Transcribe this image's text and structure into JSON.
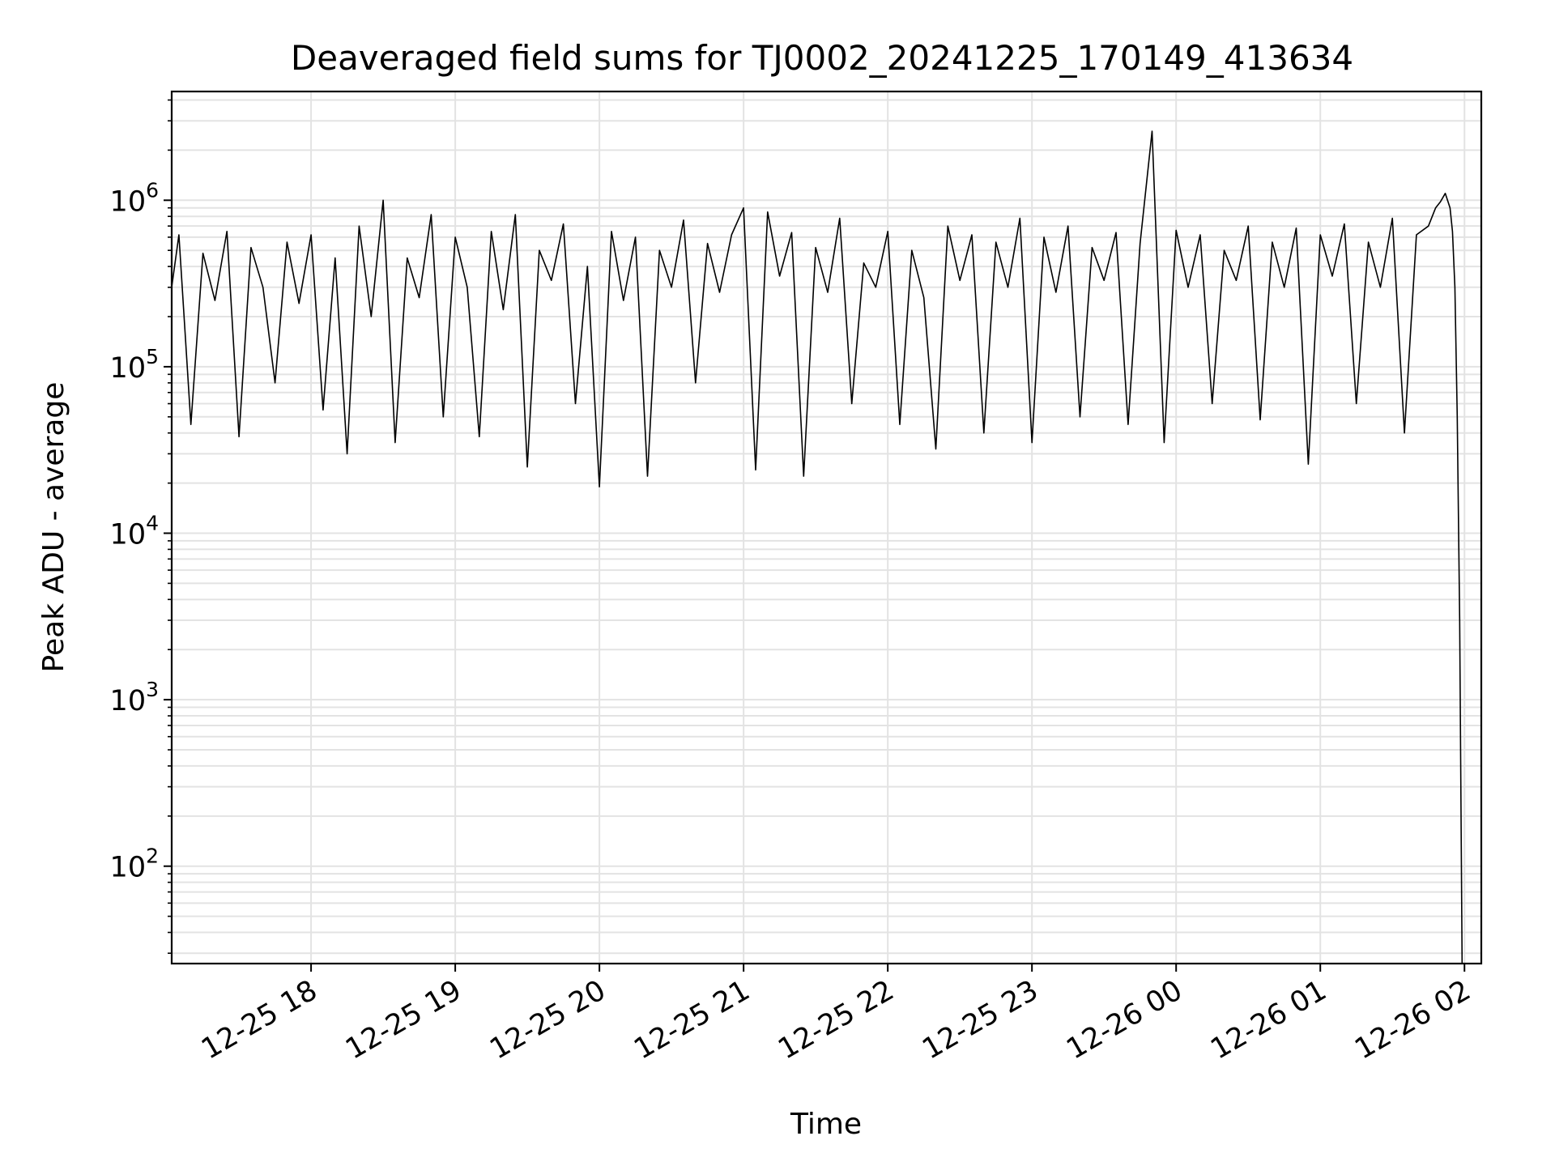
{
  "chart_data": {
    "type": "line",
    "title": "Deaveraged field sums for TJ0002_20241225_170149_413634",
    "xlabel": "Time",
    "ylabel": "Peak ADU - average",
    "yscale": "log",
    "grid": true,
    "grid_minor": true,
    "line_color": "#000000",
    "grid_color": "#e3e3e3",
    "xlim": [
      "2024-12-25 17:02",
      "2024-12-26 02:07"
    ],
    "ylim": [
      26,
      4500000
    ],
    "x_ticks": [
      {
        "value": "2024-12-25 18:00",
        "label": "12-25 18"
      },
      {
        "value": "2024-12-25 19:00",
        "label": "12-25 19"
      },
      {
        "value": "2024-12-25 20:00",
        "label": "12-25 20"
      },
      {
        "value": "2024-12-25 21:00",
        "label": "12-25 21"
      },
      {
        "value": "2024-12-25 22:00",
        "label": "12-25 22"
      },
      {
        "value": "2024-12-25 23:00",
        "label": "12-25 23"
      },
      {
        "value": "2024-12-26 00:00",
        "label": "12-26 00"
      },
      {
        "value": "2024-12-26 01:00",
        "label": "12-26 01"
      },
      {
        "value": "2024-12-26 02:00",
        "label": "12-26 02"
      }
    ],
    "y_ticks": [
      {
        "value": 100,
        "base": "10",
        "exp": "2"
      },
      {
        "value": 1000,
        "base": "10",
        "exp": "3"
      },
      {
        "value": 10000,
        "base": "10",
        "exp": "4"
      },
      {
        "value": 100000,
        "base": "10",
        "exp": "5"
      },
      {
        "value": 1000000,
        "base": "10",
        "exp": "6"
      }
    ],
    "series": [
      {
        "x": [
          "2024-12-25 17:02",
          "2024-12-25 17:05",
          "2024-12-25 17:10",
          "2024-12-25 17:15",
          "2024-12-25 17:20",
          "2024-12-25 17:25",
          "2024-12-25 17:30",
          "2024-12-25 17:35",
          "2024-12-25 17:40",
          "2024-12-25 17:45",
          "2024-12-25 17:50",
          "2024-12-25 17:55",
          "2024-12-25 18:00",
          "2024-12-25 18:05",
          "2024-12-25 18:10",
          "2024-12-25 18:15",
          "2024-12-25 18:20",
          "2024-12-25 18:25",
          "2024-12-25 18:30",
          "2024-12-25 18:35",
          "2024-12-25 18:40",
          "2024-12-25 18:45",
          "2024-12-25 18:50",
          "2024-12-25 18:55",
          "2024-12-25 19:00",
          "2024-12-25 19:05",
          "2024-12-25 19:10",
          "2024-12-25 19:15",
          "2024-12-25 19:20",
          "2024-12-25 19:25",
          "2024-12-25 19:30",
          "2024-12-25 19:35",
          "2024-12-25 19:40",
          "2024-12-25 19:45",
          "2024-12-25 19:50",
          "2024-12-25 19:55",
          "2024-12-25 20:00",
          "2024-12-25 20:05",
          "2024-12-25 20:10",
          "2024-12-25 20:15",
          "2024-12-25 20:20",
          "2024-12-25 20:25",
          "2024-12-25 20:30",
          "2024-12-25 20:35",
          "2024-12-25 20:40",
          "2024-12-25 20:45",
          "2024-12-25 20:50",
          "2024-12-25 20:55",
          "2024-12-25 21:00",
          "2024-12-25 21:05",
          "2024-12-25 21:10",
          "2024-12-25 21:15",
          "2024-12-25 21:20",
          "2024-12-25 21:25",
          "2024-12-25 21:30",
          "2024-12-25 21:35",
          "2024-12-25 21:40",
          "2024-12-25 21:45",
          "2024-12-25 21:50",
          "2024-12-25 21:55",
          "2024-12-25 22:00",
          "2024-12-25 22:05",
          "2024-12-25 22:10",
          "2024-12-25 22:15",
          "2024-12-25 22:20",
          "2024-12-25 22:25",
          "2024-12-25 22:30",
          "2024-12-25 22:35",
          "2024-12-25 22:40",
          "2024-12-25 22:45",
          "2024-12-25 22:50",
          "2024-12-25 22:55",
          "2024-12-25 23:00",
          "2024-12-25 23:05",
          "2024-12-25 23:10",
          "2024-12-25 23:15",
          "2024-12-25 23:20",
          "2024-12-25 23:25",
          "2024-12-25 23:30",
          "2024-12-25 23:35",
          "2024-12-25 23:40",
          "2024-12-25 23:45",
          "2024-12-25 23:50",
          "2024-12-25 23:55",
          "2024-12-26 00:00",
          "2024-12-26 00:05",
          "2024-12-26 00:10",
          "2024-12-26 00:15",
          "2024-12-26 00:20",
          "2024-12-26 00:25",
          "2024-12-26 00:30",
          "2024-12-26 00:35",
          "2024-12-26 00:40",
          "2024-12-26 00:45",
          "2024-12-26 00:50",
          "2024-12-26 00:55",
          "2024-12-26 01:00",
          "2024-12-26 01:05",
          "2024-12-26 01:10",
          "2024-12-26 01:15",
          "2024-12-26 01:20",
          "2024-12-26 01:25",
          "2024-12-26 01:30",
          "2024-12-26 01:35",
          "2024-12-26 01:40",
          "2024-12-26 01:45",
          "2024-12-26 01:48",
          "2024-12-26 01:50",
          "2024-12-26 01:52",
          "2024-12-26 01:54",
          "2024-12-26 01:55",
          "2024-12-26 01:56",
          "2024-12-26 01:57",
          "2024-12-26 01:58",
          "2024-12-26 01:59"
        ],
        "y": [
          300000,
          620000,
          45000,
          480000,
          250000,
          650000,
          38000,
          520000,
          300000,
          80000,
          560000,
          240000,
          620000,
          55000,
          450000,
          30000,
          700000,
          200000,
          1000000,
          35000,
          450000,
          260000,
          820000,
          50000,
          600000,
          300000,
          38000,
          650000,
          220000,
          820000,
          25000,
          500000,
          330000,
          720000,
          60000,
          400000,
          19000,
          650000,
          250000,
          600000,
          22000,
          500000,
          300000,
          760000,
          80000,
          550000,
          280000,
          620000,
          900000,
          24000,
          850000,
          350000,
          640000,
          22000,
          520000,
          280000,
          780000,
          60000,
          420000,
          300000,
          650000,
          45000,
          500000,
          260000,
          32000,
          700000,
          330000,
          620000,
          40000,
          560000,
          300000,
          780000,
          35000,
          600000,
          280000,
          700000,
          50000,
          520000,
          330000,
          640000,
          45000,
          550000,
          2600000,
          35000,
          660000,
          300000,
          620000,
          60000,
          500000,
          330000,
          700000,
          48000,
          560000,
          300000,
          680000,
          26000,
          620000,
          350000,
          720000,
          60000,
          560000,
          300000,
          780000,
          40000,
          620000,
          700000,
          900000,
          980000,
          1100000,
          900000,
          650000,
          300000,
          50000,
          3000,
          26
        ]
      }
    ]
  }
}
